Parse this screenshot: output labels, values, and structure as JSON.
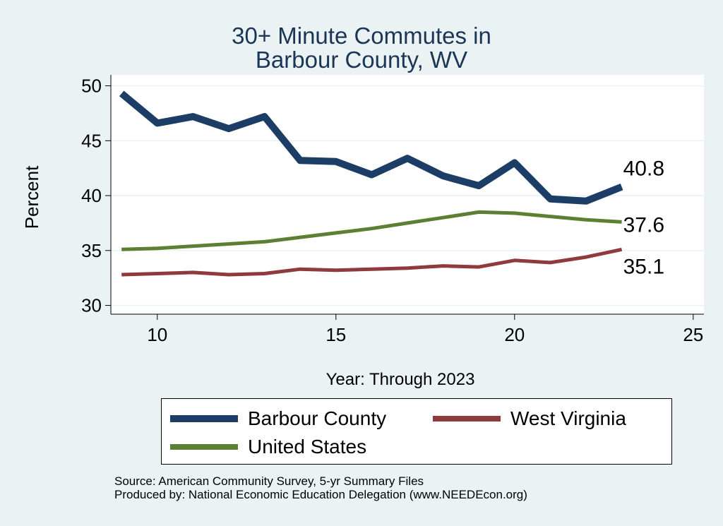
{
  "chart_data": {
    "type": "line",
    "title_lines": [
      "30+ Minute Commutes in",
      "Barbour County, WV"
    ],
    "xlabel": "Year: Through 2023",
    "ylabel": "Percent",
    "xlim": [
      8.7,
      25.3
    ],
    "ylim": [
      29.2,
      51.0
    ],
    "xticks": [
      10,
      15,
      20,
      25
    ],
    "yticks": [
      30,
      35,
      40,
      45,
      50
    ],
    "grid": true,
    "legend_position": "bottom",
    "series": [
      {
        "name": "Barbour County",
        "color": "#1b3d66",
        "line_weight": "thick",
        "x": [
          9,
          10,
          11,
          12,
          13,
          14,
          15,
          16,
          17,
          18,
          19,
          20,
          21,
          22,
          23
        ],
        "values": [
          49.3,
          46.6,
          47.2,
          46.1,
          47.2,
          43.2,
          43.1,
          41.9,
          43.4,
          41.8,
          40.9,
          43.0,
          39.7,
          39.5,
          40.8
        ],
        "end_label": "40.8"
      },
      {
        "name": "West Virginia",
        "color": "#8f3a3c",
        "line_weight": "medium",
        "x": [
          9,
          10,
          11,
          12,
          13,
          14,
          15,
          16,
          17,
          18,
          19,
          20,
          21,
          22,
          23
        ],
        "values": [
          32.8,
          32.9,
          33.0,
          32.8,
          32.9,
          33.3,
          33.2,
          33.3,
          33.4,
          33.6,
          33.5,
          34.1,
          33.9,
          34.4,
          35.1
        ],
        "end_label": "35.1"
      },
      {
        "name": "United States",
        "color": "#5c7f33",
        "line_weight": "medium",
        "x": [
          9,
          10,
          11,
          12,
          13,
          14,
          15,
          16,
          17,
          18,
          19,
          20,
          21,
          22,
          23
        ],
        "values": [
          35.1,
          35.2,
          35.4,
          35.6,
          35.8,
          36.2,
          36.6,
          37.0,
          37.5,
          38.0,
          38.5,
          38.4,
          38.1,
          37.8,
          37.6
        ],
        "end_label": "37.6"
      }
    ]
  },
  "legend": {
    "items": [
      "Barbour County",
      "West Virginia",
      "United States"
    ]
  },
  "notes": {
    "source": "Source: American Community Survey, 5-yr Summary Files",
    "produced": "Produced by: National Economic Education Delegation (www.NEEDEcon.org)"
  }
}
